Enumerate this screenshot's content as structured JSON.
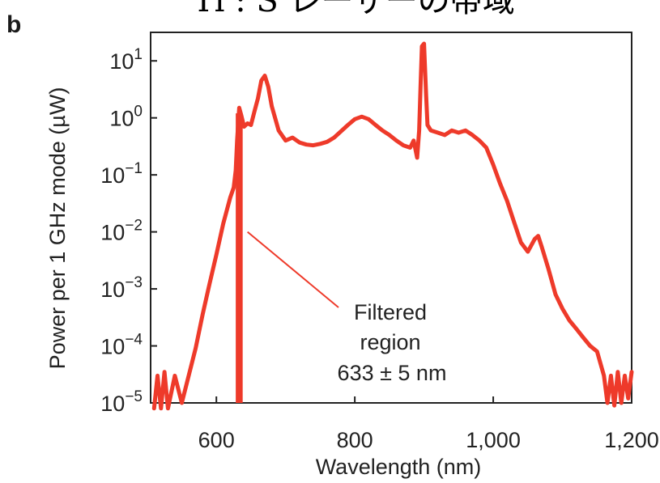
{
  "panel_label": "b",
  "title_fragment": "Ti : S レーザーの帯域",
  "chart_data": {
    "type": "line",
    "title": "Ti : S レーザーの帯域",
    "xlabel": "Wavelength (nm)",
    "ylabel": "Power per 1 GHz mode (µW)",
    "xlim": [
      505,
      1200
    ],
    "ylim_log10": [
      -5,
      1.5
    ],
    "yscale": "log",
    "grid": false,
    "legend": "none",
    "line_color": "#ee3a2a",
    "x_ticks": [
      600,
      800,
      1000,
      1200
    ],
    "x_tick_labels": [
      "600",
      "800",
      "1,000",
      "1,200"
    ],
    "y_ticks": [
      {
        "value": 10,
        "base": "10",
        "exp": "1"
      },
      {
        "value": 1,
        "base": "10",
        "exp": "0"
      },
      {
        "value": 0.1,
        "base": "10",
        "exp": "−1"
      },
      {
        "value": 0.01,
        "base": "10",
        "exp": "−2"
      },
      {
        "value": 0.001,
        "base": "10",
        "exp": "−3"
      },
      {
        "value": 0.0001,
        "base": "10",
        "exp": "−4"
      },
      {
        "value": 1e-05,
        "base": "10",
        "exp": "−5"
      }
    ],
    "x": [
      510,
      515,
      520,
      525,
      530,
      540,
      550,
      560,
      570,
      580,
      590,
      600,
      610,
      620,
      625,
      628,
      630,
      633,
      636,
      640,
      645,
      650,
      655,
      660,
      665,
      670,
      675,
      680,
      690,
      700,
      710,
      720,
      730,
      740,
      750,
      760,
      770,
      780,
      790,
      800,
      810,
      820,
      830,
      840,
      850,
      860,
      870,
      880,
      885,
      890,
      893,
      895,
      897,
      900,
      903,
      905,
      910,
      920,
      930,
      940,
      950,
      960,
      970,
      980,
      990,
      1000,
      1010,
      1020,
      1030,
      1040,
      1050,
      1060,
      1065,
      1070,
      1080,
      1090,
      1100,
      1110,
      1120,
      1130,
      1140,
      1150,
      1160,
      1165,
      1170,
      1175,
      1180,
      1185,
      1190,
      1195,
      1200
    ],
    "y": [
      8e-06,
      3e-05,
      8e-06,
      3.5e-05,
      8e-06,
      3e-05,
      1e-05,
      3e-05,
      9.1e-05,
      0.00035,
      0.0012,
      0.004,
      0.014,
      0.04,
      0.06,
      0.12,
      0.4,
      1.5,
      1.1,
      0.7,
      0.8,
      0.75,
      1.3,
      2.2,
      4.5,
      5.5,
      3.5,
      1.6,
      0.6,
      0.4,
      0.45,
      0.37,
      0.34,
      0.33,
      0.35,
      0.38,
      0.45,
      0.58,
      0.75,
      0.95,
      1.05,
      0.95,
      0.75,
      0.6,
      0.5,
      0.4,
      0.33,
      0.3,
      0.4,
      0.2,
      0.6,
      3.5,
      18,
      20,
      2.5,
      0.75,
      0.6,
      0.55,
      0.5,
      0.6,
      0.55,
      0.6,
      0.5,
      0.4,
      0.3,
      0.15,
      0.07,
      0.035,
      0.015,
      0.0065,
      0.0045,
      0.0075,
      0.0085,
      0.0055,
      0.0022,
      0.0008,
      0.00045,
      0.00028,
      0.0002,
      0.00014,
      0.0001,
      8e-05,
      3e-05,
      1e-05,
      3e-05,
      9e-06,
      3.5e-05,
      1e-05,
      3e-05,
      1.2e-05,
      3.5e-05
    ],
    "filtered_band": {
      "x0": 628,
      "x1": 638
    },
    "annotation": {
      "lines": [
        "Filtered",
        "region",
        "633 ± 5 nm"
      ],
      "pointer_to": {
        "x": 645,
        "y": 0.01
      }
    }
  }
}
